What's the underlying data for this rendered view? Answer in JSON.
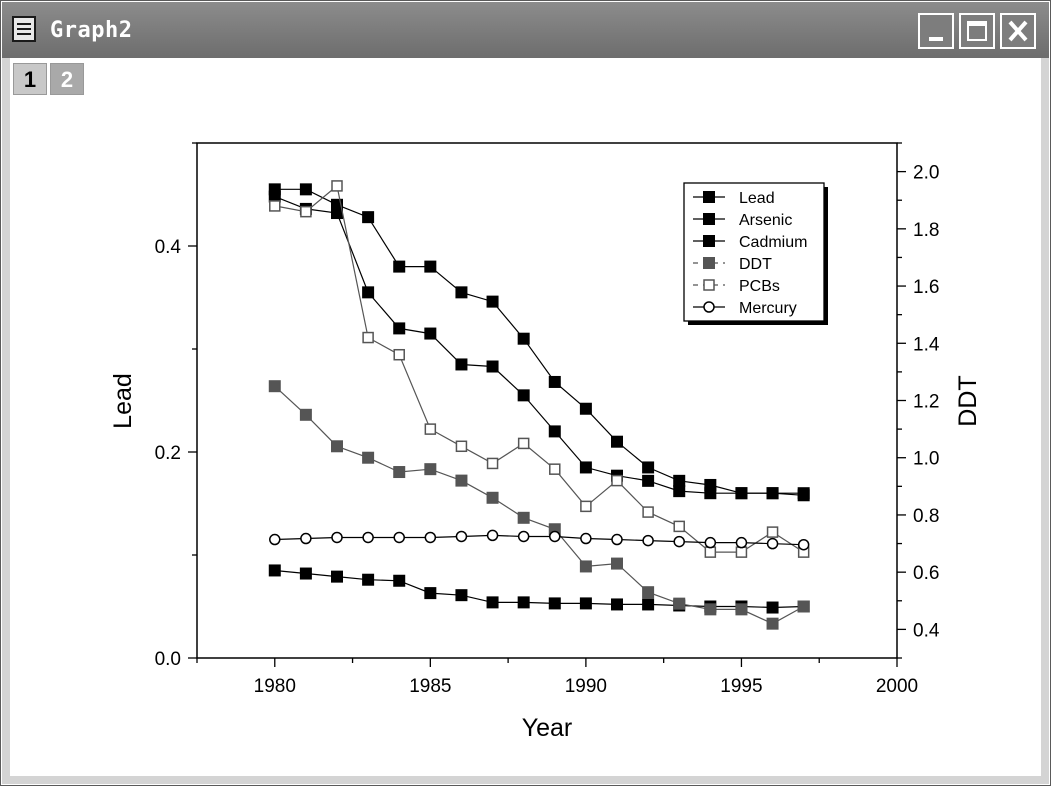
{
  "window": {
    "title": "Graph2",
    "layers": [
      "1",
      "2"
    ]
  },
  "chart_data": {
    "type": "line",
    "x": [
      1980,
      1981,
      1982,
      1983,
      1984,
      1985,
      1986,
      1987,
      1988,
      1989,
      1990,
      1991,
      1992,
      1993,
      1994,
      1995,
      1996,
      1997
    ],
    "xlabel": "Year",
    "ylabel": "Lead",
    "y2label": "DDT",
    "xlim": [
      1977.5,
      2000
    ],
    "ylim": [
      0.0,
      0.5
    ],
    "y2lim": [
      0.3,
      2.1
    ],
    "xticks": [
      "1980",
      "1985",
      "1990",
      "1995",
      "2000"
    ],
    "yticks": [
      "0.0",
      "0.2",
      "0.4"
    ],
    "y2ticks": [
      "0.4",
      "0.6",
      "0.8",
      "1.0",
      "1.2",
      "1.4",
      "1.6",
      "1.8",
      "2.0"
    ],
    "legend_position": "top-right",
    "series": [
      {
        "name": "Lead",
        "axis": "left",
        "marker": "filled-square",
        "color": "#000000",
        "values": [
          0.455,
          0.455,
          0.44,
          0.428,
          0.38,
          0.38,
          0.355,
          0.346,
          0.31,
          0.268,
          0.242,
          0.21,
          0.185,
          0.172,
          0.168,
          0.16,
          0.16,
          0.158
        ]
      },
      {
        "name": "Arsenic",
        "axis": "left",
        "marker": "filled-square",
        "color": "#000000",
        "values": [
          0.448,
          0.436,
          0.432,
          0.355,
          0.32,
          0.315,
          0.285,
          0.283,
          0.255,
          0.22,
          0.185,
          0.177,
          0.172,
          0.162,
          0.16,
          0.16,
          0.16,
          0.16
        ]
      },
      {
        "name": "Cadmium",
        "axis": "left",
        "marker": "filled-square",
        "color": "#000000",
        "values": [
          0.085,
          0.082,
          0.079,
          0.076,
          0.075,
          0.063,
          0.061,
          0.054,
          0.054,
          0.053,
          0.053,
          0.052,
          0.052,
          0.051,
          0.05,
          0.05,
          0.049,
          0.05
        ]
      },
      {
        "name": "DDT",
        "axis": "right",
        "marker": "filled-square",
        "color": "#555555",
        "values": [
          1.25,
          1.15,
          1.04,
          1.0,
          0.95,
          0.96,
          0.92,
          0.86,
          0.79,
          0.75,
          0.62,
          0.63,
          0.53,
          0.49,
          0.47,
          0.47,
          0.42,
          0.48
        ]
      },
      {
        "name": "PCBs",
        "axis": "right",
        "marker": "open-square",
        "color": "#555555",
        "values": [
          1.88,
          1.86,
          1.95,
          1.42,
          1.36,
          1.1,
          1.04,
          0.98,
          1.05,
          0.96,
          0.83,
          0.92,
          0.81,
          0.76,
          0.67,
          0.67,
          0.74,
          0.67
        ]
      },
      {
        "name": "Mercury",
        "axis": "left",
        "marker": "open-circle",
        "color": "#000000",
        "values": [
          0.115,
          0.116,
          0.117,
          0.117,
          0.117,
          0.117,
          0.118,
          0.119,
          0.118,
          0.118,
          0.116,
          0.115,
          0.114,
          0.113,
          0.112,
          0.112,
          0.111,
          0.11
        ]
      }
    ]
  }
}
